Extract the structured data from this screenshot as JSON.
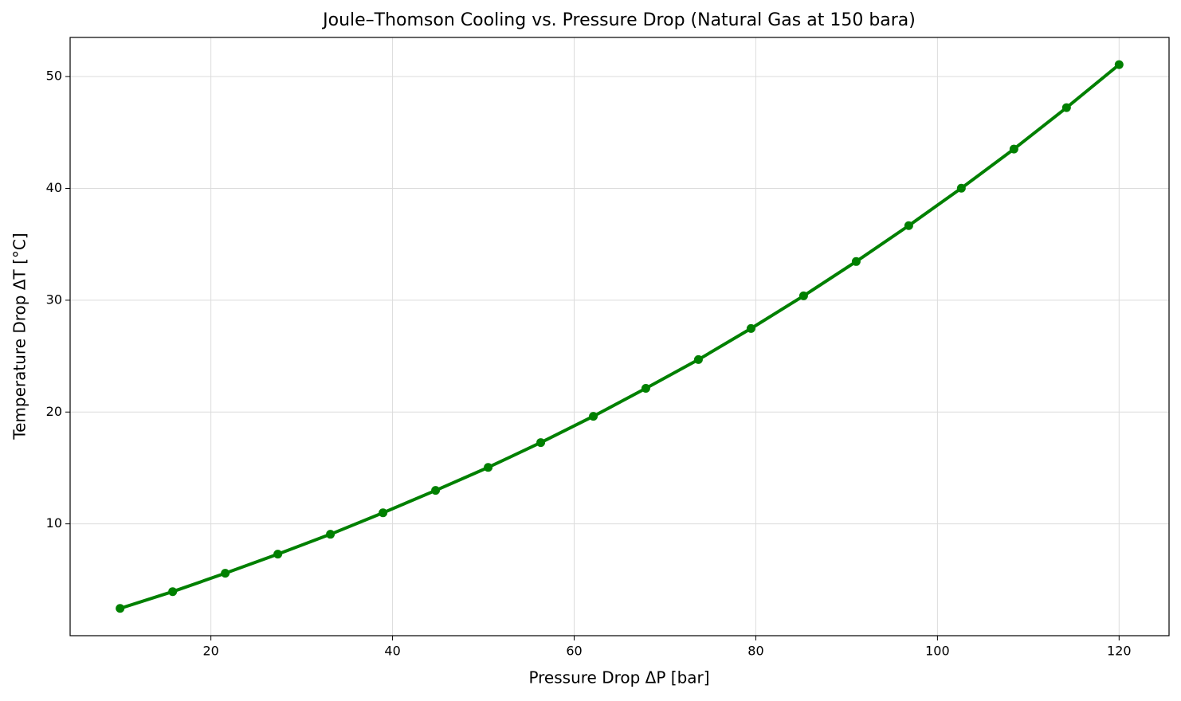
{
  "chart_data": {
    "type": "line",
    "title": "Joule–Thomson Cooling vs. Pressure Drop (Natural Gas at 150 bara)",
    "x_label": "Pressure Drop ΔP [bar]",
    "y_label": "Temperature Drop ΔT [°C]",
    "x": [
      10,
      15.79,
      21.58,
      27.37,
      33.16,
      38.95,
      44.74,
      50.53,
      56.32,
      62.11,
      67.89,
      73.68,
      79.47,
      85.26,
      91.05,
      96.84,
      102.63,
      108.42,
      114.21,
      120
    ],
    "series": [
      {
        "color": "#008000",
        "values": [
          2.44,
          3.94,
          5.58,
          7.29,
          9.07,
          10.99,
          12.99,
          15.05,
          17.27,
          19.62,
          22.12,
          24.69,
          27.47,
          30.39,
          33.46,
          36.67,
          40.02,
          43.52,
          47.22,
          51.07
        ]
      }
    ],
    "xlim": [
      4.5,
      125.5
    ],
    "ylim": [
      0,
      53.5
    ],
    "xticks": [
      20,
      40,
      60,
      80,
      100,
      120
    ],
    "yticks": [
      10,
      20,
      30,
      40,
      50
    ],
    "grid": true
  }
}
